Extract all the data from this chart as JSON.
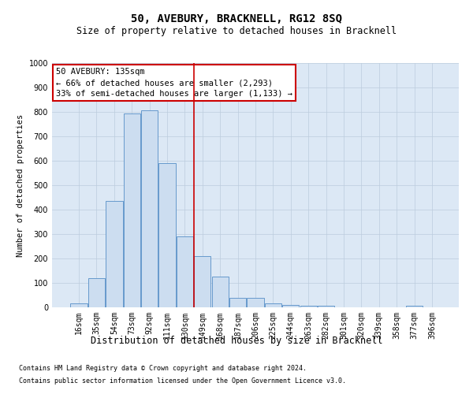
{
  "title": "50, AVEBURY, BRACKNELL, RG12 8SQ",
  "subtitle": "Size of property relative to detached houses in Bracknell",
  "xlabel": "Distribution of detached houses by size in Bracknell",
  "ylabel": "Number of detached properties",
  "footnote1": "Contains HM Land Registry data © Crown copyright and database right 2024.",
  "footnote2": "Contains public sector information licensed under the Open Government Licence v3.0.",
  "categories": [
    "16sqm",
    "35sqm",
    "54sqm",
    "73sqm",
    "92sqm",
    "111sqm",
    "130sqm",
    "149sqm",
    "168sqm",
    "187sqm",
    "206sqm",
    "225sqm",
    "244sqm",
    "263sqm",
    "282sqm",
    "301sqm",
    "320sqm",
    "339sqm",
    "358sqm",
    "377sqm",
    "396sqm"
  ],
  "values": [
    15,
    120,
    435,
    795,
    805,
    590,
    290,
    210,
    125,
    40,
    40,
    15,
    10,
    5,
    5,
    0,
    0,
    0,
    0,
    5,
    0
  ],
  "bar_color": "#ccddf0",
  "bar_edge_color": "#6699cc",
  "grid_color": "#bbccdd",
  "background_color": "#ffffff",
  "plot_bg_color": "#dce8f5",
  "vline_x": 6.5,
  "vline_color": "#cc0000",
  "annotation_text": "50 AVEBURY: 135sqm\n← 66% of detached houses are smaller (2,293)\n33% of semi-detached houses are larger (1,133) →",
  "annotation_box_color": "#cc0000",
  "ylim": [
    0,
    1000
  ],
  "yticks": [
    0,
    100,
    200,
    300,
    400,
    500,
    600,
    700,
    800,
    900,
    1000
  ],
  "title_fontsize": 10,
  "subtitle_fontsize": 8.5,
  "xlabel_fontsize": 8.5,
  "ylabel_fontsize": 7.5,
  "tick_fontsize": 7,
  "annotation_fontsize": 7.5,
  "footnote_fontsize": 6
}
